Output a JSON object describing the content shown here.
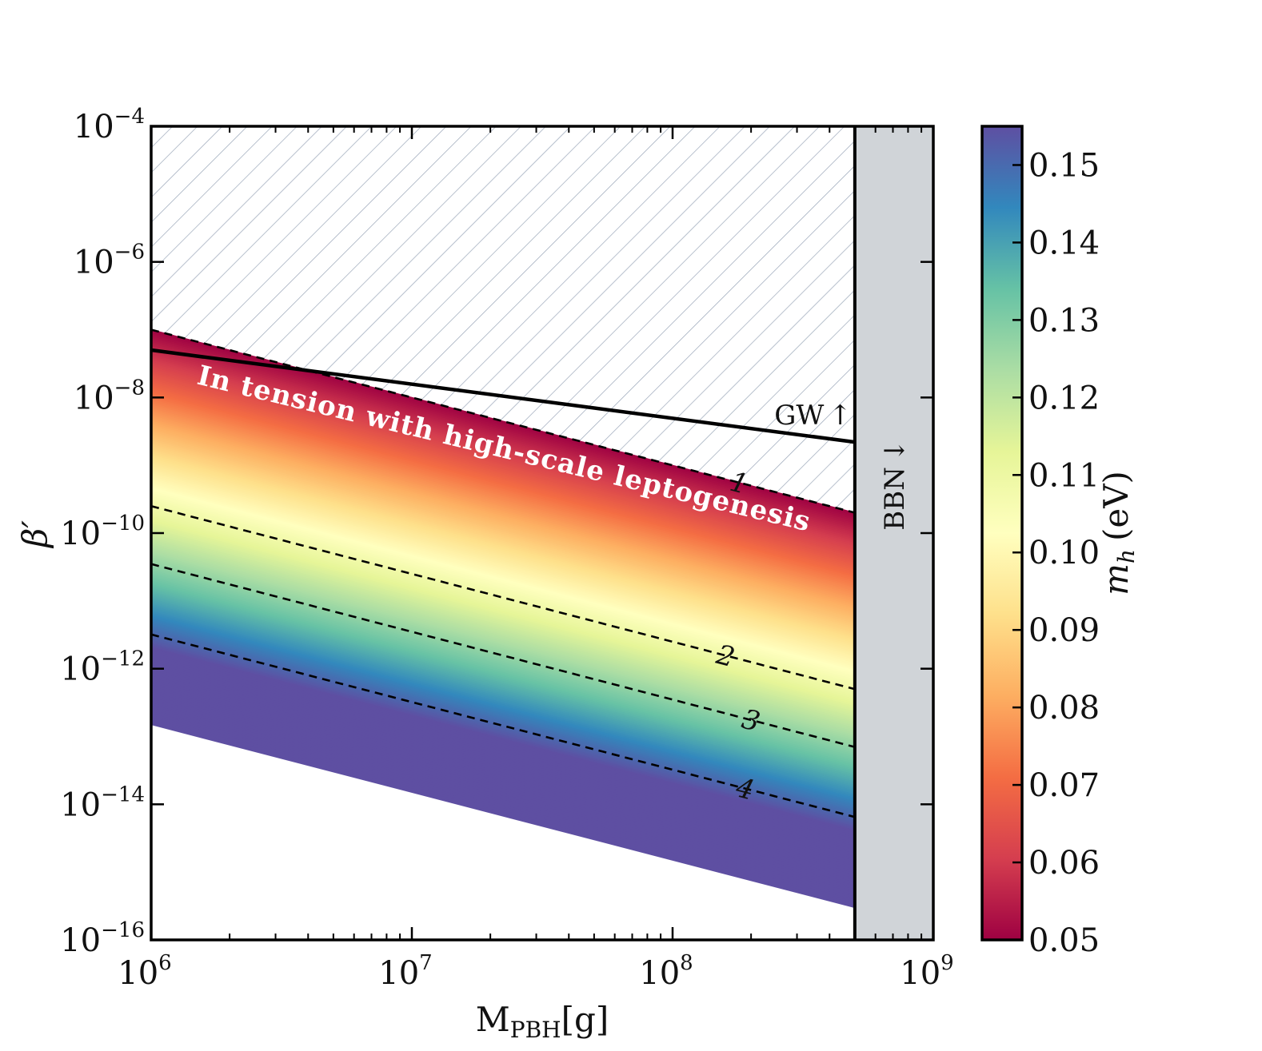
{
  "chart_data": {
    "type": "heatmap",
    "title": "",
    "xlabel": "M",
    "xlabel_sub": "PBH",
    "xlabel_unit": "[g]",
    "ylabel": "β′",
    "x_scale": "log",
    "y_scale": "log",
    "xlim": [
      1000000,
      1000000000
    ],
    "ylim": [
      1e-16,
      0.0001
    ],
    "x_ticks": [
      {
        "base": "10",
        "exp": "6",
        "value": 1000000
      },
      {
        "base": "10",
        "exp": "7",
        "value": 10000000
      },
      {
        "base": "10",
        "exp": "8",
        "value": 100000000
      },
      {
        "base": "10",
        "exp": "9",
        "value": 1000000000
      }
    ],
    "y_ticks": [
      {
        "base": "10",
        "exp": "−4",
        "value": 0.0001
      },
      {
        "base": "10",
        "exp": "−6",
        "value": 1e-06
      },
      {
        "base": "10",
        "exp": "−8",
        "value": 1e-08
      },
      {
        "base": "10",
        "exp": "−10",
        "value": 1e-10
      },
      {
        "base": "10",
        "exp": "−12",
        "value": 1e-12
      },
      {
        "base": "10",
        "exp": "−14",
        "value": 1e-14
      },
      {
        "base": "10",
        "exp": "−16",
        "value": 1e-16
      }
    ],
    "colorbar": {
      "label_symbol": "m",
      "label_sub": "h",
      "label_unit": "(eV)",
      "range": [
        0.05,
        0.155
      ],
      "ticks": [
        "0.05",
        "0.06",
        "0.07",
        "0.08",
        "0.09",
        "0.10",
        "0.11",
        "0.12",
        "0.13",
        "0.14",
        "0.15"
      ],
      "colormap": [
        "#9e0142",
        "#d53e4f",
        "#f46d43",
        "#fdae61",
        "#fee08b",
        "#ffffbf",
        "#e6f598",
        "#abdda4",
        "#66c2a5",
        "#3288bd",
        "#5e4fa2"
      ]
    },
    "band": {
      "x_start": 1000000,
      "x_end": 500000000,
      "upper_edge": [
        {
          "x": 1000000,
          "y": 1e-07
        },
        {
          "x": 500000000,
          "y": 2e-10
        }
      ],
      "lower_edge": [
        {
          "x": 1000000,
          "y": 1.5e-13
        },
        {
          "x": 500000000,
          "y": 3e-16
        }
      ],
      "color_top": {
        "m_h": 0.05,
        "at_left_y": 1e-07
      },
      "color_bottom": {
        "m_h": 0.155,
        "at_left_y": 2e-12
      }
    },
    "contours": [
      {
        "label": "1",
        "points": [
          {
            "x": 1000000,
            "y": 1e-07
          },
          {
            "x": 500000000,
            "y": 2e-10
          }
        ],
        "label_x": 180000000
      },
      {
        "label": "2",
        "points": [
          {
            "x": 1000000,
            "y": 2.5e-10
          },
          {
            "x": 500000000,
            "y": 5e-13
          }
        ],
        "label_x": 160000000
      },
      {
        "label": "3",
        "points": [
          {
            "x": 1000000,
            "y": 3.5e-11
          },
          {
            "x": 500000000,
            "y": 7e-14
          }
        ],
        "label_x": 200000000
      },
      {
        "label": "4",
        "points": [
          {
            "x": 1000000,
            "y": 3.2e-12
          },
          {
            "x": 500000000,
            "y": 6.5e-15
          }
        ],
        "label_x": 190000000
      }
    ],
    "gw_line": {
      "label": "GW",
      "arrow": "↑",
      "points": [
        {
          "x": 1000000,
          "y": 5e-08
        },
        {
          "x": 500000000,
          "y": 2.2e-09
        }
      ]
    },
    "bbn": {
      "label": "BBN",
      "arrow": "↓",
      "x_min": 500000000,
      "x_max": 1000000000,
      "color": "#d0d4d8"
    },
    "hatched_region": {
      "description": "excluded",
      "lower_edge": "band upper edge",
      "hatch_color": "#9aa6b8"
    },
    "annotation": "In tension with high-scale leptogenesis"
  }
}
